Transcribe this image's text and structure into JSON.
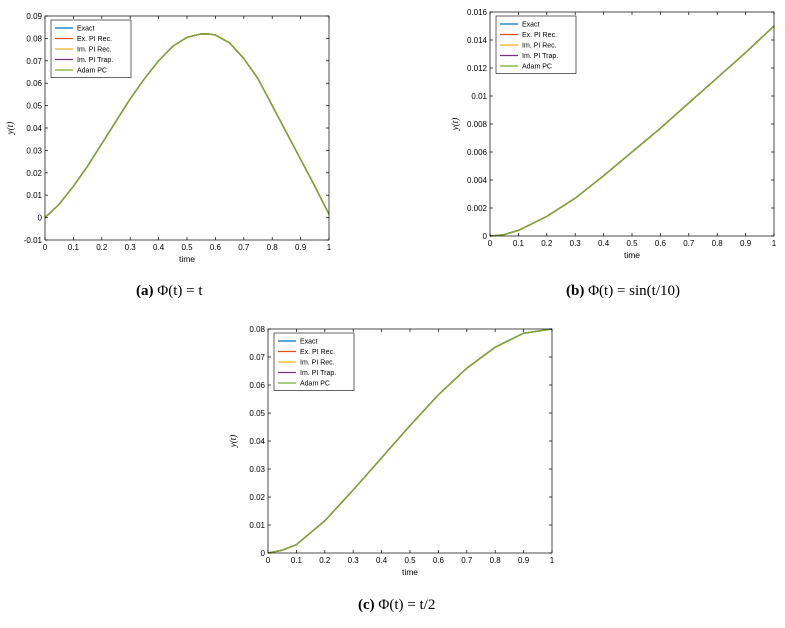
{
  "legend_entries": [
    "Exact",
    "Ex. PI Rec.",
    "Im. PI Rec.",
    "Im. PI Trap.",
    "Adam PC"
  ],
  "colors": {
    "Exact": "#0072BD",
    "Ex. PI Rec.": "#D95319",
    "Im. PI Rec.": "#EDB120",
    "Im. PI Trap.": "#7E2F8E",
    "Adam PC": "#77AC30"
  },
  "chart_data": [
    {
      "id": "a",
      "type": "line",
      "caption_label": "(a)",
      "caption_expr": "Φ(t) = t",
      "xlabel": "time",
      "ylabel": "y(t)",
      "xlim": [
        0,
        1
      ],
      "ylim": [
        -0.01,
        0.09
      ],
      "xticks": [
        "0",
        "0.1",
        "0.2",
        "0.3",
        "0.4",
        "0.5",
        "0.6",
        "0.7",
        "0.8",
        "0.9",
        "1"
      ],
      "yticks": [
        "-0.01",
        "0",
        "0.01",
        "0.02",
        "0.03",
        "0.04",
        "0.05",
        "0.06",
        "0.07",
        "0.08",
        "0.09"
      ],
      "legend_position": "top-left",
      "x": [
        0,
        0.05,
        0.1,
        0.15,
        0.2,
        0.25,
        0.3,
        0.35,
        0.4,
        0.45,
        0.5,
        0.55,
        0.575,
        0.6,
        0.65,
        0.7,
        0.75,
        0.8,
        0.85,
        0.9,
        0.95,
        1
      ],
      "series": [
        {
          "name": "Exact",
          "values": [
            0,
            0.006,
            0.014,
            0.023,
            0.033,
            0.043,
            0.053,
            0.062,
            0.07,
            0.0765,
            0.0805,
            0.082,
            0.082,
            0.0815,
            0.078,
            0.071,
            0.062,
            0.05,
            0.038,
            0.026,
            0.014,
            0.0015
          ]
        },
        {
          "name": "Ex. PI Rec.",
          "values": [
            0,
            0.006,
            0.014,
            0.023,
            0.033,
            0.043,
            0.053,
            0.062,
            0.07,
            0.0765,
            0.0805,
            0.082,
            0.082,
            0.0815,
            0.078,
            0.071,
            0.062,
            0.05,
            0.038,
            0.026,
            0.014,
            0.0015
          ]
        },
        {
          "name": "Im. PI Rec.",
          "values": [
            0,
            0.006,
            0.014,
            0.023,
            0.033,
            0.043,
            0.053,
            0.062,
            0.07,
            0.0765,
            0.0805,
            0.082,
            0.082,
            0.0815,
            0.078,
            0.071,
            0.062,
            0.05,
            0.038,
            0.026,
            0.014,
            0.0015
          ]
        },
        {
          "name": "Im. PI Trap.",
          "values": [
            0,
            0.006,
            0.014,
            0.023,
            0.033,
            0.043,
            0.053,
            0.062,
            0.07,
            0.0765,
            0.0805,
            0.082,
            0.082,
            0.0815,
            0.078,
            0.071,
            0.062,
            0.05,
            0.038,
            0.026,
            0.014,
            0.0015
          ]
        },
        {
          "name": "Adam PC",
          "values": [
            0,
            0.006,
            0.014,
            0.023,
            0.033,
            0.043,
            0.053,
            0.062,
            0.07,
            0.0765,
            0.0805,
            0.082,
            0.082,
            0.0815,
            0.078,
            0.071,
            0.062,
            0.05,
            0.038,
            0.026,
            0.014,
            0.0015
          ]
        }
      ]
    },
    {
      "id": "b",
      "type": "line",
      "caption_label": "(b)",
      "caption_expr": "Φ(t) = sin(t/10)",
      "xlabel": "time",
      "ylabel": "y(t)",
      "xlim": [
        0,
        1
      ],
      "ylim": [
        0,
        0.016
      ],
      "xticks": [
        "0",
        "0.1",
        "0.2",
        "0.3",
        "0.4",
        "0.5",
        "0.6",
        "0.7",
        "0.8",
        "0.9",
        "1"
      ],
      "yticks": [
        "0",
        "0.002",
        "0.004",
        "0.006",
        "0.008",
        "0.01",
        "0.012",
        "0.014",
        "0.016"
      ],
      "legend_position": "top-left",
      "x": [
        0,
        0.05,
        0.1,
        0.2,
        0.3,
        0.4,
        0.5,
        0.6,
        0.7,
        0.8,
        0.9,
        1
      ],
      "series": [
        {
          "name": "Exact",
          "values": [
            0,
            0.0001,
            0.0004,
            0.0014,
            0.0027,
            0.0043,
            0.006,
            0.0077,
            0.0095,
            0.0113,
            0.0131,
            0.015
          ]
        },
        {
          "name": "Ex. PI Rec.",
          "values": [
            0,
            0.0001,
            0.0004,
            0.0014,
            0.0027,
            0.0043,
            0.006,
            0.0077,
            0.0095,
            0.0113,
            0.0131,
            0.015
          ]
        },
        {
          "name": "Im. PI Rec.",
          "values": [
            0,
            0.0001,
            0.0004,
            0.0014,
            0.0027,
            0.0043,
            0.006,
            0.0077,
            0.0095,
            0.0113,
            0.0131,
            0.015
          ]
        },
        {
          "name": "Im. PI Trap.",
          "values": [
            0,
            0.0001,
            0.0004,
            0.0014,
            0.0027,
            0.0043,
            0.006,
            0.0077,
            0.0095,
            0.0113,
            0.0131,
            0.015
          ]
        },
        {
          "name": "Adam PC",
          "values": [
            0,
            0.0001,
            0.0004,
            0.0014,
            0.0027,
            0.0043,
            0.006,
            0.0077,
            0.0095,
            0.0113,
            0.0131,
            0.015
          ]
        }
      ]
    },
    {
      "id": "c",
      "type": "line",
      "caption_label": "(c)",
      "caption_expr": "Φ(t) = t/2",
      "xlabel": "time",
      "ylabel": "y(t)",
      "xlim": [
        0,
        1
      ],
      "ylim": [
        0,
        0.08
      ],
      "xticks": [
        "0",
        "0.1",
        "0.2",
        "0.3",
        "0.4",
        "0.5",
        "0.6",
        "0.7",
        "0.8",
        "0.9",
        "1"
      ],
      "yticks": [
        "0",
        "0.01",
        "0.02",
        "0.03",
        "0.04",
        "0.05",
        "0.06",
        "0.07",
        "0.08"
      ],
      "legend_position": "top-left",
      "x": [
        0,
        0.05,
        0.1,
        0.2,
        0.3,
        0.4,
        0.5,
        0.6,
        0.7,
        0.8,
        0.9,
        1
      ],
      "series": [
        {
          "name": "Exact",
          "values": [
            0,
            0.001,
            0.003,
            0.0115,
            0.0225,
            0.034,
            0.0455,
            0.0565,
            0.066,
            0.0735,
            0.0785,
            0.08
          ]
        },
        {
          "name": "Ex. PI Rec.",
          "values": [
            0,
            0.001,
            0.003,
            0.0115,
            0.0225,
            0.034,
            0.0455,
            0.0565,
            0.066,
            0.0735,
            0.0785,
            0.08
          ]
        },
        {
          "name": "Im. PI Rec.",
          "values": [
            0,
            0.001,
            0.003,
            0.0115,
            0.0225,
            0.034,
            0.0455,
            0.0565,
            0.066,
            0.0735,
            0.0785,
            0.08
          ]
        },
        {
          "name": "Im. PI Trap.",
          "values": [
            0,
            0.001,
            0.003,
            0.0115,
            0.0225,
            0.034,
            0.0455,
            0.0565,
            0.066,
            0.0735,
            0.0785,
            0.08
          ]
        },
        {
          "name": "Adam PC",
          "values": [
            0,
            0.001,
            0.003,
            0.0115,
            0.0225,
            0.034,
            0.0455,
            0.0565,
            0.066,
            0.0735,
            0.0785,
            0.08
          ]
        }
      ]
    }
  ]
}
